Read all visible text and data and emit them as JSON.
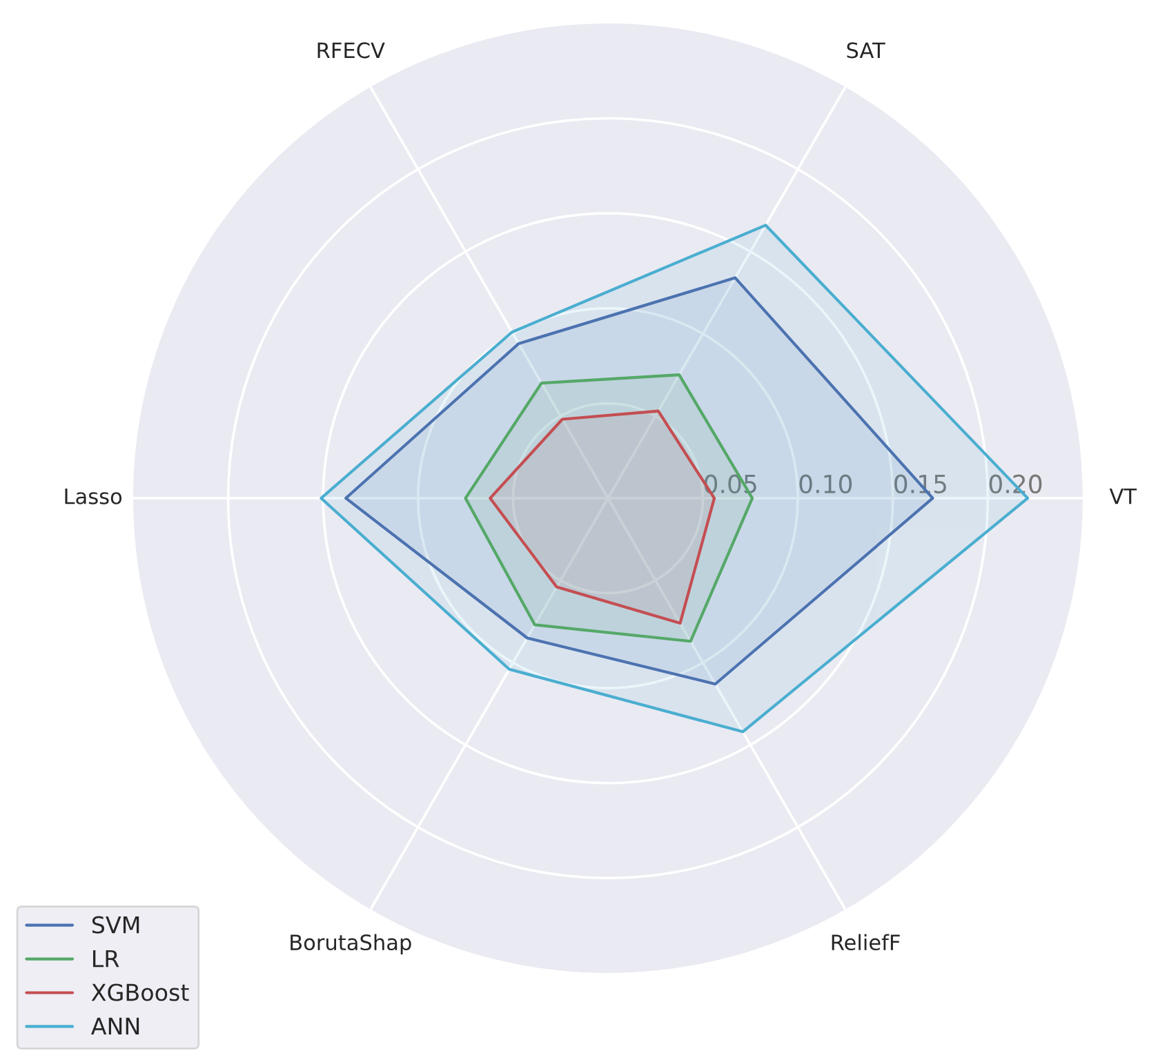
{
  "chart_data": {
    "type": "radar",
    "categories": [
      "SAT",
      "VT",
      "ReliefF",
      "BorutaShap",
      "Lasso",
      "RFECV"
    ],
    "series": [
      {
        "name": "SVM",
        "color": "#4c72b0",
        "values": [
          0.134,
          0.171,
          0.113,
          0.085,
          0.138,
          0.094
        ]
      },
      {
        "name": "LR",
        "color": "#55a868",
        "values": [
          0.075,
          0.076,
          0.087,
          0.077,
          0.075,
          0.07
        ]
      },
      {
        "name": "XGBoost",
        "color": "#c44e52",
        "values": [
          0.053,
          0.056,
          0.076,
          0.054,
          0.062,
          0.048
        ]
      },
      {
        "name": "ANN",
        "color": "#4aaed0",
        "values": [
          0.166,
          0.221,
          0.142,
          0.104,
          0.151,
          0.101
        ]
      }
    ],
    "ylim": [
      0,
      0.25
    ],
    "yticks": [
      0.05,
      {
        "value": 0.1,
        "label": "0.10"
      },
      0.15,
      {
        "value": 0.2,
        "label": "0.20"
      }
    ],
    "grid": true,
    "legend": "bottom left",
    "marker": "none",
    "line_style": "solid"
  }
}
